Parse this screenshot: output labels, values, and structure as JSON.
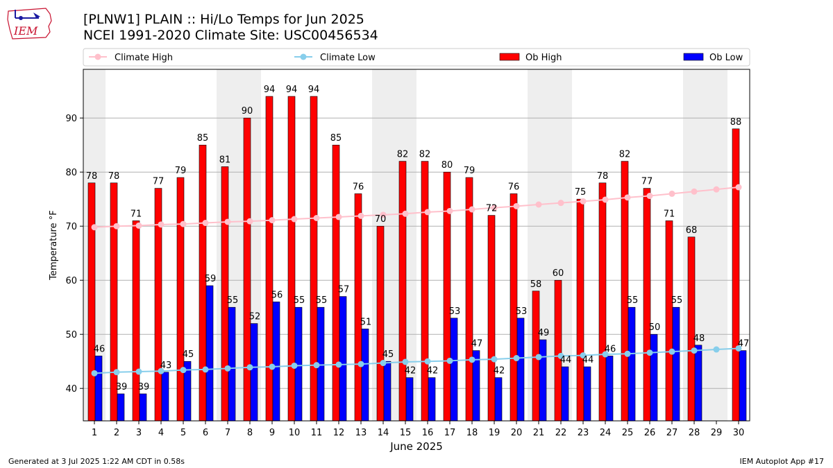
{
  "header": {
    "title_line1": "[PLNW1] PLAIN :: Hi/Lo Temps for Jun 2025",
    "title_line2": "NCEI 1991-2020 Climate Site: USC00456534",
    "logo_text": "IEM"
  },
  "footer": {
    "generated": "Generated at 3 Jul 2025 1:22 AM CDT in 0.58s",
    "app": "IEM Autoplot App #17"
  },
  "colors": {
    "ob_high": "#ff0000",
    "ob_low": "#0000ff",
    "climate_high": "#ffc0cb",
    "climate_low": "#87ceeb",
    "weekend_shade": "#eeeeee",
    "grid": "#b0b0b0"
  },
  "chart_data": {
    "type": "bar",
    "xlabel": "June 2025",
    "ylabel": "Temperature °F",
    "ylim": [
      34,
      99
    ],
    "yticks": [
      40,
      50,
      60,
      70,
      80,
      90
    ],
    "grid": "horizontal",
    "legend_position": "top",
    "categories": [
      1,
      2,
      3,
      4,
      5,
      6,
      7,
      8,
      9,
      10,
      11,
      12,
      13,
      14,
      15,
      16,
      17,
      18,
      19,
      20,
      21,
      22,
      23,
      24,
      25,
      26,
      27,
      28,
      29,
      30
    ],
    "shaded_days": [
      [
        1,
        1
      ],
      [
        7,
        8
      ],
      [
        14,
        15
      ],
      [
        21,
        22
      ],
      [
        28,
        29
      ]
    ],
    "legend": [
      "Climate High",
      "Climate Low",
      "Ob High",
      "Ob Low"
    ],
    "series": [
      {
        "name": "Ob High",
        "kind": "bar",
        "values": [
          78,
          78,
          71,
          77,
          79,
          85,
          81,
          90,
          94,
          94,
          94,
          85,
          76,
          70,
          82,
          82,
          80,
          79,
          72,
          76,
          58,
          60,
          75,
          78,
          82,
          77,
          71,
          68,
          null,
          88
        ]
      },
      {
        "name": "Ob Low",
        "kind": "bar",
        "values": [
          46,
          39,
          39,
          43,
          45,
          59,
          55,
          52,
          56,
          55,
          55,
          57,
          51,
          45,
          42,
          42,
          53,
          47,
          42,
          53,
          49,
          44,
          44,
          46,
          55,
          50,
          55,
          48,
          null,
          47
        ]
      },
      {
        "name": "Climate High",
        "kind": "line",
        "values": [
          69.8,
          70.0,
          70.1,
          70.3,
          70.4,
          70.6,
          70.8,
          70.9,
          71.1,
          71.3,
          71.5,
          71.7,
          71.9,
          72.1,
          72.3,
          72.6,
          72.8,
          73.1,
          73.4,
          73.7,
          74.0,
          74.3,
          74.6,
          74.9,
          75.3,
          75.6,
          76.0,
          76.4,
          76.8,
          77.2
        ]
      },
      {
        "name": "Climate Low",
        "kind": "line",
        "values": [
          42.8,
          43.0,
          43.1,
          43.2,
          43.4,
          43.5,
          43.7,
          43.9,
          44.0,
          44.2,
          44.3,
          44.4,
          44.5,
          44.7,
          44.9,
          45.0,
          45.1,
          45.3,
          45.4,
          45.6,
          45.8,
          46.0,
          46.1,
          46.3,
          46.4,
          46.6,
          46.8,
          47.0,
          47.2,
          47.4
        ]
      }
    ]
  }
}
